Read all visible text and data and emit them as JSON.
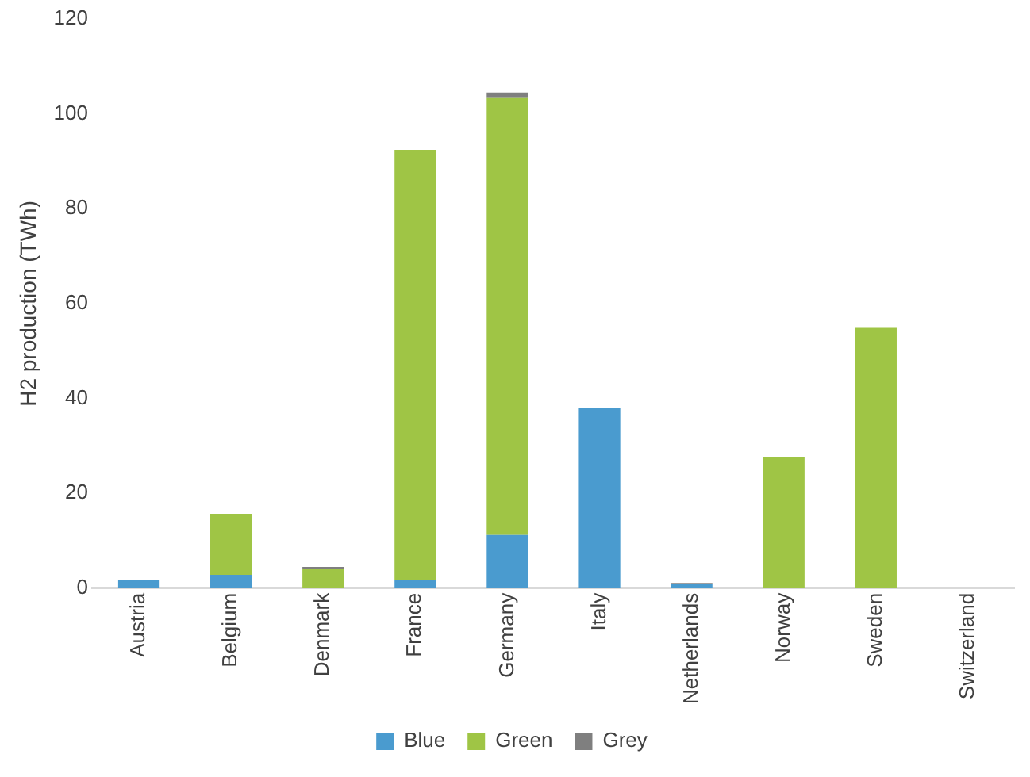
{
  "chart_data": {
    "type": "bar",
    "stacked": true,
    "ylabel": "H2 production (TWh)",
    "categories": [
      "Austria",
      "Belgium",
      "Denmark",
      "France",
      "Germany",
      "Italy",
      "Netherlands",
      "Norway",
      "Sweden",
      "Switzerland"
    ],
    "series": [
      {
        "name": "Blue",
        "color": "#4a9bcf",
        "values": [
          1.8,
          2.8,
          0,
          1.7,
          11.2,
          38.0,
          0.8,
          0,
          0,
          0
        ]
      },
      {
        "name": "Green",
        "color": "#9fc545",
        "values": [
          0,
          12.9,
          4.0,
          90.7,
          92.3,
          0,
          0,
          27.7,
          54.9,
          0
        ]
      },
      {
        "name": "Grey",
        "color": "#7f7f7f",
        "values": [
          0,
          0,
          0.5,
          0,
          1.0,
          0,
          0.3,
          0,
          0,
          0
        ]
      }
    ],
    "ylim": [
      0,
      120
    ],
    "yticks": [
      0,
      20,
      40,
      60,
      80,
      100,
      120
    ],
    "grid": false,
    "legend": "bottom"
  }
}
